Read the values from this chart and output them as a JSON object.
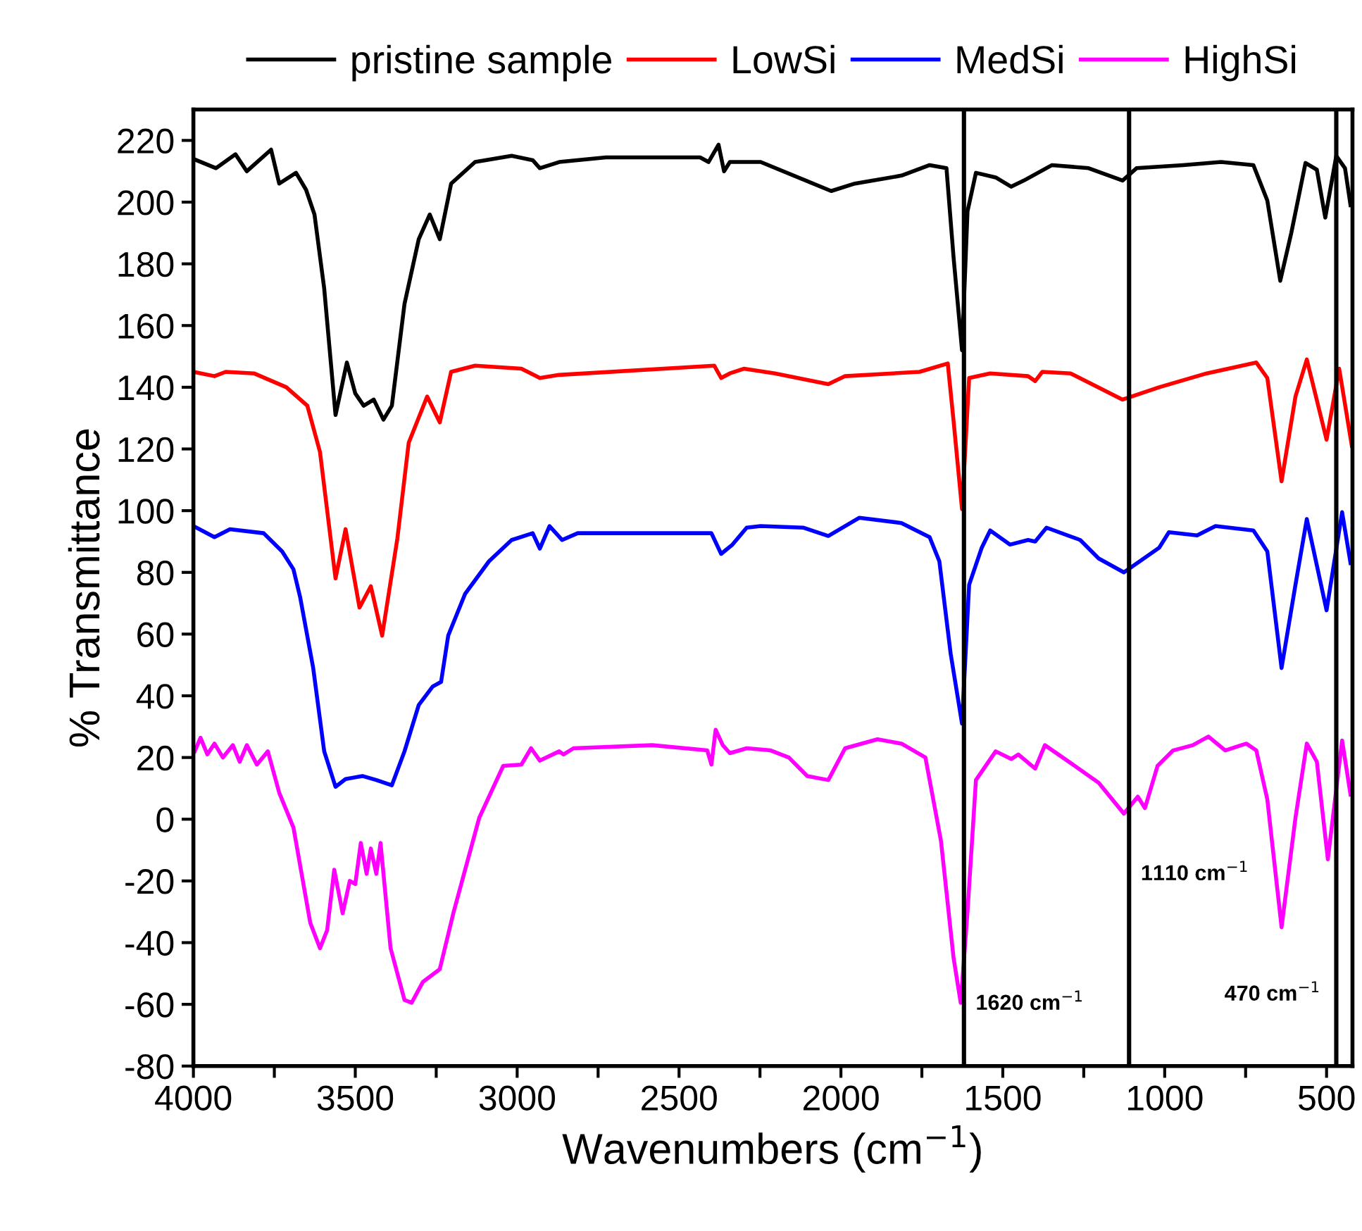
{
  "chart_data": {
    "type": "line",
    "xlabel": "Wavenumbers (cm$^{−1}$)",
    "ylabel": "% Transmittance",
    "xlim": [
      4000,
      420
    ],
    "ylim": [
      -80,
      230
    ],
    "xticks": [
      4000,
      {
        "value": 3750,
        "label": null
      },
      3500,
      {
        "value": 3250,
        "label": null
      },
      3000,
      {
        "value": 2750,
        "label": null
      },
      2500,
      {
        "value": 2250,
        "label": null
      },
      2000,
      {
        "value": 1750,
        "label": null
      },
      1500,
      {
        "value": 1250,
        "label": null
      },
      1000,
      {
        "value": 750,
        "label": null
      },
      500
    ],
    "yticks": [
      -80,
      -60,
      -40,
      -20,
      0,
      20,
      40,
      60,
      80,
      100,
      120,
      140,
      160,
      180,
      200,
      220
    ],
    "grid": false,
    "legend": "top",
    "line_style": "solid",
    "marker": "none",
    "series": [
      {
        "name": "pristine sample",
        "color": "#000000",
        "x": [
          4000,
          3930,
          3870,
          3835,
          3760,
          3735,
          3683,
          3652,
          3626,
          3596,
          3561,
          3526,
          3500,
          3474,
          3443,
          3413,
          3387,
          3348,
          3304,
          3270,
          3239,
          3204,
          3130,
          3017,
          2952,
          2930,
          2870,
          2726,
          2435,
          2409,
          2378,
          2361,
          2343,
          2291,
          2248,
          2030,
          1957,
          1813,
          1726,
          1674,
          1652,
          1626,
          1609,
          1583,
          1522,
          1474,
          1435,
          1348,
          1235,
          1130,
          1087,
          943,
          826,
          726,
          683,
          643,
          609,
          565,
          530,
          504,
          470,
          443,
          426
        ],
        "values": [
          214,
          211,
          215.5,
          210,
          217,
          206,
          209.5,
          204,
          196,
          172,
          131,
          148,
          138,
          134,
          136,
          129.5,
          134,
          167,
          188,
          196,
          188,
          206,
          213,
          215,
          213.6,
          211,
          213,
          214.5,
          214.5,
          213,
          218.6,
          210,
          213,
          213,
          213,
          203.6,
          206,
          208.6,
          212,
          211,
          182,
          152,
          197,
          209.5,
          208,
          205,
          207,
          212,
          211,
          207,
          211,
          212,
          213,
          212,
          200.5,
          174.5,
          190,
          212.7,
          210.5,
          195,
          215,
          211,
          199
        ]
      },
      {
        "name": "LowSi",
        "color": "#ff0000",
        "x": [
          4000,
          3935,
          3900,
          3813,
          3713,
          3648,
          3609,
          3561,
          3530,
          3487,
          3452,
          3417,
          3370,
          3335,
          3278,
          3239,
          3204,
          3130,
          2987,
          2930,
          2870,
          2391,
          2370,
          2343,
          2300,
          2204,
          2039,
          1987,
          1757,
          1670,
          1652,
          1626,
          1604,
          1539,
          1422,
          1400,
          1378,
          1291,
          1130,
          1017,
          870,
          717,
          683,
          639,
          596,
          561,
          500,
          461,
          422
        ],
        "values": [
          145,
          143.6,
          145,
          144.5,
          140,
          134,
          119,
          78,
          94,
          68.6,
          75.5,
          59.5,
          91,
          122,
          137,
          128.6,
          145,
          147,
          146,
          143,
          144,
          147,
          143,
          144.5,
          146,
          144.5,
          141,
          143.6,
          145,
          147.7,
          129,
          100.5,
          143,
          144.5,
          143.6,
          142,
          145,
          144.5,
          136,
          140,
          144.5,
          148,
          143,
          109.5,
          137,
          149,
          123,
          146,
          121
        ]
      },
      {
        "name": "MedSi",
        "color": "#0000ff",
        "x": [
          4000,
          3935,
          3887,
          3783,
          3726,
          3691,
          3670,
          3630,
          3596,
          3561,
          3530,
          3478,
          3435,
          3387,
          3348,
          3304,
          3261,
          3235,
          3213,
          3161,
          3087,
          3017,
          2952,
          2930,
          2900,
          2861,
          2813,
          2400,
          2370,
          2335,
          2291,
          2248,
          2117,
          2039,
          1943,
          1813,
          1726,
          1696,
          1661,
          1626,
          1604,
          1565,
          1539,
          1478,
          1422,
          1400,
          1365,
          1261,
          1204,
          1126,
          1017,
          987,
          900,
          843,
          726,
          683,
          639,
          596,
          561,
          500,
          452,
          426
        ],
        "values": [
          95,
          91.4,
          94,
          92.7,
          86.8,
          81,
          71.8,
          49,
          22,
          10.5,
          13,
          14,
          12.7,
          11,
          22,
          37,
          43,
          44.5,
          59.5,
          73,
          83.6,
          90.5,
          92.7,
          87.7,
          95,
          90.5,
          92.7,
          92.7,
          86,
          89,
          94.5,
          95,
          94.5,
          91.8,
          97.7,
          96,
          91.4,
          83.6,
          53.6,
          31,
          76,
          88,
          93.6,
          89,
          90.5,
          90,
          94.5,
          90.5,
          84.5,
          80,
          88,
          93,
          92,
          95,
          93.6,
          86.8,
          49,
          76,
          97.3,
          67.7,
          99.5,
          83
        ]
      },
      {
        "name": "HighSi",
        "color": "#ff00ff",
        "x": [
          3996,
          3978,
          3957,
          3935,
          3909,
          3878,
          3857,
          3835,
          3804,
          3770,
          3735,
          3691,
          3639,
          3609,
          3587,
          3565,
          3539,
          3517,
          3500,
          3483,
          3465,
          3452,
          3435,
          3422,
          3391,
          3348,
          3326,
          3291,
          3239,
          3196,
          3117,
          3043,
          2987,
          2957,
          2930,
          2870,
          2857,
          2826,
          2583,
          2413,
          2400,
          2387,
          2365,
          2343,
          2291,
          2217,
          2161,
          2104,
          2039,
          1987,
          1887,
          1813,
          1739,
          1691,
          1652,
          1630,
          1609,
          1583,
          1522,
          1474,
          1452,
          1400,
          1370,
          1278,
          1204,
          1126,
          1083,
          1061,
          1022,
          974,
          913,
          865,
          813,
          748,
          717,
          683,
          639,
          596,
          561,
          530,
          496,
          452,
          426
        ],
        "values": [
          22,
          26.4,
          21,
          24.5,
          20,
          24,
          18.6,
          24,
          17.7,
          22,
          8.6,
          -2.7,
          -33.6,
          -41.8,
          -36,
          -16.4,
          -30.5,
          -20,
          -21,
          -7.7,
          -17.7,
          -9.5,
          -17.7,
          -7.7,
          -41.8,
          -58.6,
          -59.5,
          -52.7,
          -48.6,
          -30,
          0.5,
          17.3,
          17.7,
          23,
          19,
          22,
          21,
          23,
          24,
          22.3,
          17.7,
          29,
          24,
          21.4,
          23,
          22.3,
          20,
          14,
          12.7,
          23,
          25.9,
          24.5,
          20,
          -7,
          -45,
          -59.5,
          -30,
          12.7,
          22,
          19.5,
          21,
          16.4,
          24,
          17.3,
          11.8,
          1.8,
          7.3,
          3.6,
          17.3,
          22.3,
          24,
          26.8,
          22.3,
          24.5,
          22.3,
          6.4,
          -35,
          0.5,
          24.5,
          18.6,
          -13,
          25.5,
          8
        ]
      }
    ],
    "ref_lines": [
      {
        "axis": "x",
        "value": 1620,
        "color": "#000000",
        "line_style": "solid"
      },
      {
        "axis": "x",
        "value": 1110,
        "color": "#000000",
        "line_style": "solid"
      },
      {
        "axis": "x",
        "value": 470,
        "color": "#000000",
        "line_style": "solid"
      }
    ],
    "annotations": [
      {
        "text": "1620 cm$^{−1}$",
        "x": 1620,
        "y": -60
      },
      {
        "text": "1110 cm$^{−1}$",
        "x": 1110,
        "y": -18
      },
      {
        "text": "470 cm$^{−1}$",
        "x": 470,
        "y": -57
      }
    ]
  }
}
